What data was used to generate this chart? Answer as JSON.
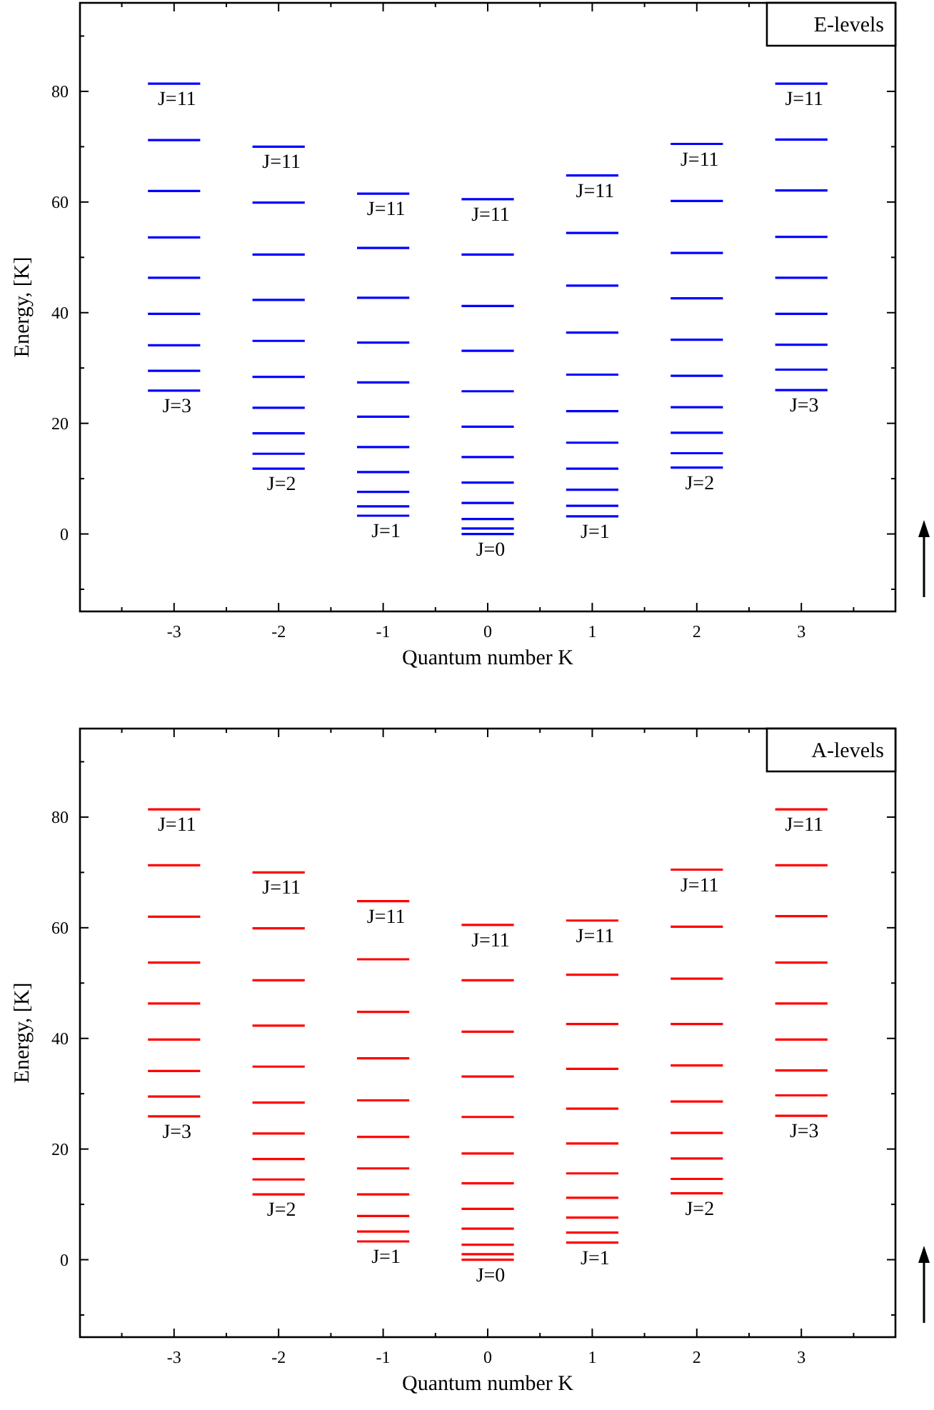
{
  "chart_data": [
    {
      "type": "line",
      "title": "E-levels",
      "xlabel": "Quantum number K",
      "ylabel": "Energy, [K]",
      "xlim": [
        -3.9,
        3.9
      ],
      "ylim": [
        -14,
        96
      ],
      "xticks": [
        -3,
        {
          "value": -2.5,
          "label": null
        },
        -2,
        {
          "value": -1.5,
          "label": null
        },
        -1,
        {
          "value": -0.5,
          "label": null
        },
        0,
        {
          "value": 0.5,
          "label": null
        },
        1,
        {
          "value": 1.5,
          "label": null
        },
        2,
        {
          "value": 2.5,
          "label": null
        },
        3,
        {
          "value": -3.5,
          "label": null
        },
        {
          "value": 3.5,
          "label": null
        }
      ],
      "yticks": [
        {
          "value": -10,
          "label": null
        },
        0,
        {
          "value": 10,
          "label": null
        },
        20,
        {
          "value": 30,
          "label": null
        },
        40,
        {
          "value": 50,
          "label": null
        },
        60,
        {
          "value": 70,
          "label": null
        },
        80,
        {
          "value": 90,
          "label": null
        }
      ],
      "tick_labels": "xy",
      "grid": false,
      "line_style": "solid",
      "marker": "none",
      "series": [
        {
          "color": "#0000ff",
          "x": [
            -3.25,
            -2.75
          ],
          "values": [
            25.9,
            25.9
          ]
        },
        {
          "color": "#0000ff",
          "x": [
            -3.25,
            -2.75
          ],
          "values": [
            29.5,
            29.5
          ]
        },
        {
          "color": "#0000ff",
          "x": [
            -3.25,
            -2.75
          ],
          "values": [
            34.1,
            34.1
          ]
        },
        {
          "color": "#0000ff",
          "x": [
            -3.25,
            -2.75
          ],
          "values": [
            39.8,
            39.8
          ]
        },
        {
          "color": "#0000ff",
          "x": [
            -3.25,
            -2.75
          ],
          "values": [
            46.3,
            46.3
          ]
        },
        {
          "color": "#0000ff",
          "x": [
            -3.25,
            -2.75
          ],
          "values": [
            53.6,
            53.6
          ]
        },
        {
          "color": "#0000ff",
          "x": [
            -3.25,
            -2.75
          ],
          "values": [
            62.0,
            62.0
          ]
        },
        {
          "color": "#0000ff",
          "x": [
            -3.25,
            -2.75
          ],
          "values": [
            71.2,
            71.2
          ]
        },
        {
          "color": "#0000ff",
          "x": [
            -3.25,
            -2.75
          ],
          "values": [
            81.4,
            81.4
          ]
        },
        {
          "color": "#0000ff",
          "x": [
            -2.25,
            -1.75
          ],
          "values": [
            11.8,
            11.8
          ]
        },
        {
          "color": "#0000ff",
          "x": [
            -2.25,
            -1.75
          ],
          "values": [
            14.5,
            14.5
          ]
        },
        {
          "color": "#0000ff",
          "x": [
            -2.25,
            -1.75
          ],
          "values": [
            18.2,
            18.2
          ]
        },
        {
          "color": "#0000ff",
          "x": [
            -2.25,
            -1.75
          ],
          "values": [
            22.8,
            22.8
          ]
        },
        {
          "color": "#0000ff",
          "x": [
            -2.25,
            -1.75
          ],
          "values": [
            28.4,
            28.4
          ]
        },
        {
          "color": "#0000ff",
          "x": [
            -2.25,
            -1.75
          ],
          "values": [
            34.9,
            34.9
          ]
        },
        {
          "color": "#0000ff",
          "x": [
            -2.25,
            -1.75
          ],
          "values": [
            42.3,
            42.3
          ]
        },
        {
          "color": "#0000ff",
          "x": [
            -2.25,
            -1.75
          ],
          "values": [
            50.5,
            50.5
          ]
        },
        {
          "color": "#0000ff",
          "x": [
            -2.25,
            -1.75
          ],
          "values": [
            59.9,
            59.9
          ]
        },
        {
          "color": "#0000ff",
          "x": [
            -2.25,
            -1.75
          ],
          "values": [
            70.0,
            70.0
          ]
        },
        {
          "color": "#0000ff",
          "x": [
            -1.25,
            -0.75
          ],
          "values": [
            3.3,
            3.3
          ]
        },
        {
          "color": "#0000ff",
          "x": [
            -1.25,
            -0.75
          ],
          "values": [
            5.0,
            5.0
          ]
        },
        {
          "color": "#0000ff",
          "x": [
            -1.25,
            -0.75
          ],
          "values": [
            7.6,
            7.6
          ]
        },
        {
          "color": "#0000ff",
          "x": [
            -1.25,
            -0.75
          ],
          "values": [
            11.2,
            11.2
          ]
        },
        {
          "color": "#0000ff",
          "x": [
            -1.25,
            -0.75
          ],
          "values": [
            15.7,
            15.7
          ]
        },
        {
          "color": "#0000ff",
          "x": [
            -1.25,
            -0.75
          ],
          "values": [
            21.2,
            21.2
          ]
        },
        {
          "color": "#0000ff",
          "x": [
            -1.25,
            -0.75
          ],
          "values": [
            27.4,
            27.4
          ]
        },
        {
          "color": "#0000ff",
          "x": [
            -1.25,
            -0.75
          ],
          "values": [
            34.6,
            34.6
          ]
        },
        {
          "color": "#0000ff",
          "x": [
            -1.25,
            -0.75
          ],
          "values": [
            42.7,
            42.7
          ]
        },
        {
          "color": "#0000ff",
          "x": [
            -1.25,
            -0.75
          ],
          "values": [
            51.7,
            51.7
          ]
        },
        {
          "color": "#0000ff",
          "x": [
            -1.25,
            -0.75
          ],
          "values": [
            61.5,
            61.5
          ]
        },
        {
          "color": "#0000ff",
          "x": [
            -0.25,
            0.25
          ],
          "values": [
            0,
            0
          ]
        },
        {
          "color": "#0000ff",
          "x": [
            -0.25,
            0.25
          ],
          "values": [
            1.0,
            1.0
          ]
        },
        {
          "color": "#0000ff",
          "x": [
            -0.25,
            0.25
          ],
          "values": [
            2.7,
            2.7
          ]
        },
        {
          "color": "#0000ff",
          "x": [
            -0.25,
            0.25
          ],
          "values": [
            5.6,
            5.6
          ]
        },
        {
          "color": "#0000ff",
          "x": [
            -0.25,
            0.25
          ],
          "values": [
            9.3,
            9.3
          ]
        },
        {
          "color": "#0000ff",
          "x": [
            -0.25,
            0.25
          ],
          "values": [
            13.9,
            13.9
          ]
        },
        {
          "color": "#0000ff",
          "x": [
            -0.25,
            0.25
          ],
          "values": [
            19.4,
            19.4
          ]
        },
        {
          "color": "#0000ff",
          "x": [
            -0.25,
            0.25
          ],
          "values": [
            25.8,
            25.8
          ]
        },
        {
          "color": "#0000ff",
          "x": [
            -0.25,
            0.25
          ],
          "values": [
            33.1,
            33.1
          ]
        },
        {
          "color": "#0000ff",
          "x": [
            -0.25,
            0.25
          ],
          "values": [
            41.2,
            41.2
          ]
        },
        {
          "color": "#0000ff",
          "x": [
            -0.25,
            0.25
          ],
          "values": [
            50.5,
            50.5
          ]
        },
        {
          "color": "#0000ff",
          "x": [
            -0.25,
            0.25
          ],
          "values": [
            60.5,
            60.5
          ]
        },
        {
          "color": "#0000ff",
          "x": [
            0.75,
            1.25
          ],
          "values": [
            3.2,
            3.2
          ]
        },
        {
          "color": "#0000ff",
          "x": [
            0.75,
            1.25
          ],
          "values": [
            5.1,
            5.1
          ]
        },
        {
          "color": "#0000ff",
          "x": [
            0.75,
            1.25
          ],
          "values": [
            8.0,
            8.0
          ]
        },
        {
          "color": "#0000ff",
          "x": [
            0.75,
            1.25
          ],
          "values": [
            11.8,
            11.8
          ]
        },
        {
          "color": "#0000ff",
          "x": [
            0.75,
            1.25
          ],
          "values": [
            16.5,
            16.5
          ]
        },
        {
          "color": "#0000ff",
          "x": [
            0.75,
            1.25
          ],
          "values": [
            22.2,
            22.2
          ]
        },
        {
          "color": "#0000ff",
          "x": [
            0.75,
            1.25
          ],
          "values": [
            28.8,
            28.8
          ]
        },
        {
          "color": "#0000ff",
          "x": [
            0.75,
            1.25
          ],
          "values": [
            36.4,
            36.4
          ]
        },
        {
          "color": "#0000ff",
          "x": [
            0.75,
            1.25
          ],
          "values": [
            44.9,
            44.9
          ]
        },
        {
          "color": "#0000ff",
          "x": [
            0.75,
            1.25
          ],
          "values": [
            54.4,
            54.4
          ]
        },
        {
          "color": "#0000ff",
          "x": [
            0.75,
            1.25
          ],
          "values": [
            64.8,
            64.8
          ]
        },
        {
          "color": "#0000ff",
          "x": [
            1.75,
            2.25
          ],
          "values": [
            12.0,
            12.0
          ]
        },
        {
          "color": "#0000ff",
          "x": [
            1.75,
            2.25
          ],
          "values": [
            14.6,
            14.6
          ]
        },
        {
          "color": "#0000ff",
          "x": [
            1.75,
            2.25
          ],
          "values": [
            18.3,
            18.3
          ]
        },
        {
          "color": "#0000ff",
          "x": [
            1.75,
            2.25
          ],
          "values": [
            22.9,
            22.9
          ]
        },
        {
          "color": "#0000ff",
          "x": [
            1.75,
            2.25
          ],
          "values": [
            28.6,
            28.6
          ]
        },
        {
          "color": "#0000ff",
          "x": [
            1.75,
            2.25
          ],
          "values": [
            35.1,
            35.1
          ]
        },
        {
          "color": "#0000ff",
          "x": [
            1.75,
            2.25
          ],
          "values": [
            42.6,
            42.6
          ]
        },
        {
          "color": "#0000ff",
          "x": [
            1.75,
            2.25
          ],
          "values": [
            50.8,
            50.8
          ]
        },
        {
          "color": "#0000ff",
          "x": [
            1.75,
            2.25
          ],
          "values": [
            60.2,
            60.2
          ]
        },
        {
          "color": "#0000ff",
          "x": [
            1.75,
            2.25
          ],
          "values": [
            70.5,
            70.5
          ]
        },
        {
          "color": "#0000ff",
          "x": [
            2.75,
            3.25
          ],
          "values": [
            26.0,
            26.0
          ]
        },
        {
          "color": "#0000ff",
          "x": [
            2.75,
            3.25
          ],
          "values": [
            29.7,
            29.7
          ]
        },
        {
          "color": "#0000ff",
          "x": [
            2.75,
            3.25
          ],
          "values": [
            34.2,
            34.2
          ]
        },
        {
          "color": "#0000ff",
          "x": [
            2.75,
            3.25
          ],
          "values": [
            39.8,
            39.8
          ]
        },
        {
          "color": "#0000ff",
          "x": [
            2.75,
            3.25
          ],
          "values": [
            46.3,
            46.3
          ]
        },
        {
          "color": "#0000ff",
          "x": [
            2.75,
            3.25
          ],
          "values": [
            53.7,
            53.7
          ]
        },
        {
          "color": "#0000ff",
          "x": [
            2.75,
            3.25
          ],
          "values": [
            62.1,
            62.1
          ]
        },
        {
          "color": "#0000ff",
          "x": [
            2.75,
            3.25
          ],
          "values": [
            71.3,
            71.3
          ]
        },
        {
          "color": "#0000ff",
          "x": [
            2.75,
            3.25
          ],
          "values": [
            81.4,
            81.4
          ]
        }
      ],
      "annotations": [
        {
          "text": "J=11",
          "x": -3,
          "y": 81.4
        },
        {
          "text": "J=3",
          "x": -3,
          "y": 25.9
        },
        {
          "text": "J=11",
          "x": -2,
          "y": 70.0
        },
        {
          "text": "J=2",
          "x": -2,
          "y": 11.8
        },
        {
          "text": "J=11",
          "x": -1,
          "y": 61.5
        },
        {
          "text": "J=1",
          "x": -1,
          "y": 3.3
        },
        {
          "text": "J=11",
          "x": 0,
          "y": 60.5
        },
        {
          "text": "J=0",
          "x": 0,
          "y": 0
        },
        {
          "text": "J=11",
          "x": 1,
          "y": 64.8
        },
        {
          "text": "J=1",
          "x": 1,
          "y": 3.2
        },
        {
          "text": "J=11",
          "x": 2,
          "y": 70.5
        },
        {
          "text": "J=2",
          "x": 2,
          "y": 12.0
        },
        {
          "text": "J=11",
          "x": 3,
          "y": 81.4
        },
        {
          "text": "J=3",
          "x": 3,
          "y": 26.0
        }
      ]
    },
    {
      "type": "line",
      "title": "A-levels",
      "xlabel": "Quantum number K",
      "ylabel": "Energy, [K]",
      "xlim": [
        -3.9,
        3.9
      ],
      "ylim": [
        -14,
        96
      ],
      "xticks": [
        -3,
        {
          "value": -2.5,
          "label": null
        },
        -2,
        {
          "value": -1.5,
          "label": null
        },
        -1,
        {
          "value": -0.5,
          "label": null
        },
        0,
        {
          "value": 0.5,
          "label": null
        },
        1,
        {
          "value": 1.5,
          "label": null
        },
        2,
        {
          "value": 2.5,
          "label": null
        },
        3,
        {
          "value": -3.5,
          "label": null
        },
        {
          "value": 3.5,
          "label": null
        }
      ],
      "yticks": [
        {
          "value": -10,
          "label": null
        },
        0,
        {
          "value": 10,
          "label": null
        },
        20,
        {
          "value": 30,
          "label": null
        },
        40,
        {
          "value": 50,
          "label": null
        },
        60,
        {
          "value": 70,
          "label": null
        },
        80,
        {
          "value": 90,
          "label": null
        }
      ],
      "tick_labels": "xy",
      "grid": false,
      "line_style": "solid",
      "marker": "none",
      "series": [
        {
          "color": "#ff0000",
          "x": [
            -3.25,
            -2.75
          ],
          "values": [
            25.9,
            25.9
          ]
        },
        {
          "color": "#ff0000",
          "x": [
            -3.25,
            -2.75
          ],
          "values": [
            29.5,
            29.5
          ]
        },
        {
          "color": "#ff0000",
          "x": [
            -3.25,
            -2.75
          ],
          "values": [
            34.1,
            34.1
          ]
        },
        {
          "color": "#ff0000",
          "x": [
            -3.25,
            -2.75
          ],
          "values": [
            39.8,
            39.8
          ]
        },
        {
          "color": "#ff0000",
          "x": [
            -3.25,
            -2.75
          ],
          "values": [
            46.3,
            46.3
          ]
        },
        {
          "color": "#ff0000",
          "x": [
            -3.25,
            -2.75
          ],
          "values": [
            53.7,
            53.7
          ]
        },
        {
          "color": "#ff0000",
          "x": [
            -3.25,
            -2.75
          ],
          "values": [
            62.0,
            62.0
          ]
        },
        {
          "color": "#ff0000",
          "x": [
            -3.25,
            -2.75
          ],
          "values": [
            71.3,
            71.3
          ]
        },
        {
          "color": "#ff0000",
          "x": [
            -3.25,
            -2.75
          ],
          "values": [
            81.4,
            81.4
          ]
        },
        {
          "color": "#ff0000",
          "x": [
            -2.25,
            -1.75
          ],
          "values": [
            11.8,
            11.8
          ]
        },
        {
          "color": "#ff0000",
          "x": [
            -2.25,
            -1.75
          ],
          "values": [
            14.5,
            14.5
          ]
        },
        {
          "color": "#ff0000",
          "x": [
            -2.25,
            -1.75
          ],
          "values": [
            18.2,
            18.2
          ]
        },
        {
          "color": "#ff0000",
          "x": [
            -2.25,
            -1.75
          ],
          "values": [
            22.8,
            22.8
          ]
        },
        {
          "color": "#ff0000",
          "x": [
            -2.25,
            -1.75
          ],
          "values": [
            28.4,
            28.4
          ]
        },
        {
          "color": "#ff0000",
          "x": [
            -2.25,
            -1.75
          ],
          "values": [
            34.9,
            34.9
          ]
        },
        {
          "color": "#ff0000",
          "x": [
            -2.25,
            -1.75
          ],
          "values": [
            42.3,
            42.3
          ]
        },
        {
          "color": "#ff0000",
          "x": [
            -2.25,
            -1.75
          ],
          "values": [
            50.5,
            50.5
          ]
        },
        {
          "color": "#ff0000",
          "x": [
            -2.25,
            -1.75
          ],
          "values": [
            59.9,
            59.9
          ]
        },
        {
          "color": "#ff0000",
          "x": [
            -2.25,
            -1.75
          ],
          "values": [
            70.0,
            70.0
          ]
        },
        {
          "color": "#ff0000",
          "x": [
            -1.25,
            -0.75
          ],
          "values": [
            3.3,
            3.3
          ]
        },
        {
          "color": "#ff0000",
          "x": [
            -1.25,
            -0.75
          ],
          "values": [
            5.1,
            5.1
          ]
        },
        {
          "color": "#ff0000",
          "x": [
            -1.25,
            -0.75
          ],
          "values": [
            7.9,
            7.9
          ]
        },
        {
          "color": "#ff0000",
          "x": [
            -1.25,
            -0.75
          ],
          "values": [
            11.8,
            11.8
          ]
        },
        {
          "color": "#ff0000",
          "x": [
            -1.25,
            -0.75
          ],
          "values": [
            16.5,
            16.5
          ]
        },
        {
          "color": "#ff0000",
          "x": [
            -1.25,
            -0.75
          ],
          "values": [
            22.2,
            22.2
          ]
        },
        {
          "color": "#ff0000",
          "x": [
            -1.25,
            -0.75
          ],
          "values": [
            28.8,
            28.8
          ]
        },
        {
          "color": "#ff0000",
          "x": [
            -1.25,
            -0.75
          ],
          "values": [
            36.4,
            36.4
          ]
        },
        {
          "color": "#ff0000",
          "x": [
            -1.25,
            -0.75
          ],
          "values": [
            44.8,
            44.8
          ]
        },
        {
          "color": "#ff0000",
          "x": [
            -1.25,
            -0.75
          ],
          "values": [
            54.3,
            54.3
          ]
        },
        {
          "color": "#ff0000",
          "x": [
            -1.25,
            -0.75
          ],
          "values": [
            64.8,
            64.8
          ]
        },
        {
          "color": "#ff0000",
          "x": [
            -0.25,
            0.25
          ],
          "values": [
            0,
            0
          ]
        },
        {
          "color": "#ff0000",
          "x": [
            -0.25,
            0.25
          ],
          "values": [
            1.0,
            1.0
          ]
        },
        {
          "color": "#ff0000",
          "x": [
            -0.25,
            0.25
          ],
          "values": [
            2.7,
            2.7
          ]
        },
        {
          "color": "#ff0000",
          "x": [
            -0.25,
            0.25
          ],
          "values": [
            5.6,
            5.6
          ]
        },
        {
          "color": "#ff0000",
          "x": [
            -0.25,
            0.25
          ],
          "values": [
            9.2,
            9.2
          ]
        },
        {
          "color": "#ff0000",
          "x": [
            -0.25,
            0.25
          ],
          "values": [
            13.8,
            13.8
          ]
        },
        {
          "color": "#ff0000",
          "x": [
            -0.25,
            0.25
          ],
          "values": [
            19.2,
            19.2
          ]
        },
        {
          "color": "#ff0000",
          "x": [
            -0.25,
            0.25
          ],
          "values": [
            25.8,
            25.8
          ]
        },
        {
          "color": "#ff0000",
          "x": [
            -0.25,
            0.25
          ],
          "values": [
            33.1,
            33.1
          ]
        },
        {
          "color": "#ff0000",
          "x": [
            -0.25,
            0.25
          ],
          "values": [
            41.2,
            41.2
          ]
        },
        {
          "color": "#ff0000",
          "x": [
            -0.25,
            0.25
          ],
          "values": [
            50.5,
            50.5
          ]
        },
        {
          "color": "#ff0000",
          "x": [
            -0.25,
            0.25
          ],
          "values": [
            60.5,
            60.5
          ]
        },
        {
          "color": "#ff0000",
          "x": [
            0.75,
            1.25
          ],
          "values": [
            3.1,
            3.1
          ]
        },
        {
          "color": "#ff0000",
          "x": [
            0.75,
            1.25
          ],
          "values": [
            4.9,
            4.9
          ]
        },
        {
          "color": "#ff0000",
          "x": [
            0.75,
            1.25
          ],
          "values": [
            7.6,
            7.6
          ]
        },
        {
          "color": "#ff0000",
          "x": [
            0.75,
            1.25
          ],
          "values": [
            11.2,
            11.2
          ]
        },
        {
          "color": "#ff0000",
          "x": [
            0.75,
            1.25
          ],
          "values": [
            15.6,
            15.6
          ]
        },
        {
          "color": "#ff0000",
          "x": [
            0.75,
            1.25
          ],
          "values": [
            21.0,
            21.0
          ]
        },
        {
          "color": "#ff0000",
          "x": [
            0.75,
            1.25
          ],
          "values": [
            27.3,
            27.3
          ]
        },
        {
          "color": "#ff0000",
          "x": [
            0.75,
            1.25
          ],
          "values": [
            34.5,
            34.5
          ]
        },
        {
          "color": "#ff0000",
          "x": [
            0.75,
            1.25
          ],
          "values": [
            42.6,
            42.6
          ]
        },
        {
          "color": "#ff0000",
          "x": [
            0.75,
            1.25
          ],
          "values": [
            51.5,
            51.5
          ]
        },
        {
          "color": "#ff0000",
          "x": [
            0.75,
            1.25
          ],
          "values": [
            61.3,
            61.3
          ]
        },
        {
          "color": "#ff0000",
          "x": [
            1.75,
            2.25
          ],
          "values": [
            12.0,
            12.0
          ]
        },
        {
          "color": "#ff0000",
          "x": [
            1.75,
            2.25
          ],
          "values": [
            14.6,
            14.6
          ]
        },
        {
          "color": "#ff0000",
          "x": [
            1.75,
            2.25
          ],
          "values": [
            18.3,
            18.3
          ]
        },
        {
          "color": "#ff0000",
          "x": [
            1.75,
            2.25
          ],
          "values": [
            22.9,
            22.9
          ]
        },
        {
          "color": "#ff0000",
          "x": [
            1.75,
            2.25
          ],
          "values": [
            28.6,
            28.6
          ]
        },
        {
          "color": "#ff0000",
          "x": [
            1.75,
            2.25
          ],
          "values": [
            35.1,
            35.1
          ]
        },
        {
          "color": "#ff0000",
          "x": [
            1.75,
            2.25
          ],
          "values": [
            42.6,
            42.6
          ]
        },
        {
          "color": "#ff0000",
          "x": [
            1.75,
            2.25
          ],
          "values": [
            50.8,
            50.8
          ]
        },
        {
          "color": "#ff0000",
          "x": [
            1.75,
            2.25
          ],
          "values": [
            60.2,
            60.2
          ]
        },
        {
          "color": "#ff0000",
          "x": [
            1.75,
            2.25
          ],
          "values": [
            70.5,
            70.5
          ]
        },
        {
          "color": "#ff0000",
          "x": [
            2.75,
            3.25
          ],
          "values": [
            26.0,
            26.0
          ]
        },
        {
          "color": "#ff0000",
          "x": [
            2.75,
            3.25
          ],
          "values": [
            29.7,
            29.7
          ]
        },
        {
          "color": "#ff0000",
          "x": [
            2.75,
            3.25
          ],
          "values": [
            34.2,
            34.2
          ]
        },
        {
          "color": "#ff0000",
          "x": [
            2.75,
            3.25
          ],
          "values": [
            39.8,
            39.8
          ]
        },
        {
          "color": "#ff0000",
          "x": [
            2.75,
            3.25
          ],
          "values": [
            46.3,
            46.3
          ]
        },
        {
          "color": "#ff0000",
          "x": [
            2.75,
            3.25
          ],
          "values": [
            53.7,
            53.7
          ]
        },
        {
          "color": "#ff0000",
          "x": [
            2.75,
            3.25
          ],
          "values": [
            62.1,
            62.1
          ]
        },
        {
          "color": "#ff0000",
          "x": [
            2.75,
            3.25
          ],
          "values": [
            71.3,
            71.3
          ]
        },
        {
          "color": "#ff0000",
          "x": [
            2.75,
            3.25
          ],
          "values": [
            81.4,
            81.4
          ]
        }
      ],
      "annotations": [
        {
          "text": "J=11",
          "x": -3,
          "y": 81.4
        },
        {
          "text": "J=3",
          "x": -3,
          "y": 25.9
        },
        {
          "text": "J=11",
          "x": -2,
          "y": 70.0
        },
        {
          "text": "J=2",
          "x": -2,
          "y": 11.8
        },
        {
          "text": "J=11",
          "x": -1,
          "y": 64.8
        },
        {
          "text": "J=1",
          "x": -1,
          "y": 3.3
        },
        {
          "text": "J=11",
          "x": 0,
          "y": 60.5
        },
        {
          "text": "J=0",
          "x": 0,
          "y": 0
        },
        {
          "text": "J=11",
          "x": 1,
          "y": 61.3
        },
        {
          "text": "J=1",
          "x": 1,
          "y": 3.1
        },
        {
          "text": "J=11",
          "x": 2,
          "y": 70.5
        },
        {
          "text": "J=2",
          "x": 2,
          "y": 12.0
        },
        {
          "text": "J=11",
          "x": 3,
          "y": 81.4
        },
        {
          "text": "J=3",
          "x": 3,
          "y": 26.0
        }
      ]
    }
  ]
}
